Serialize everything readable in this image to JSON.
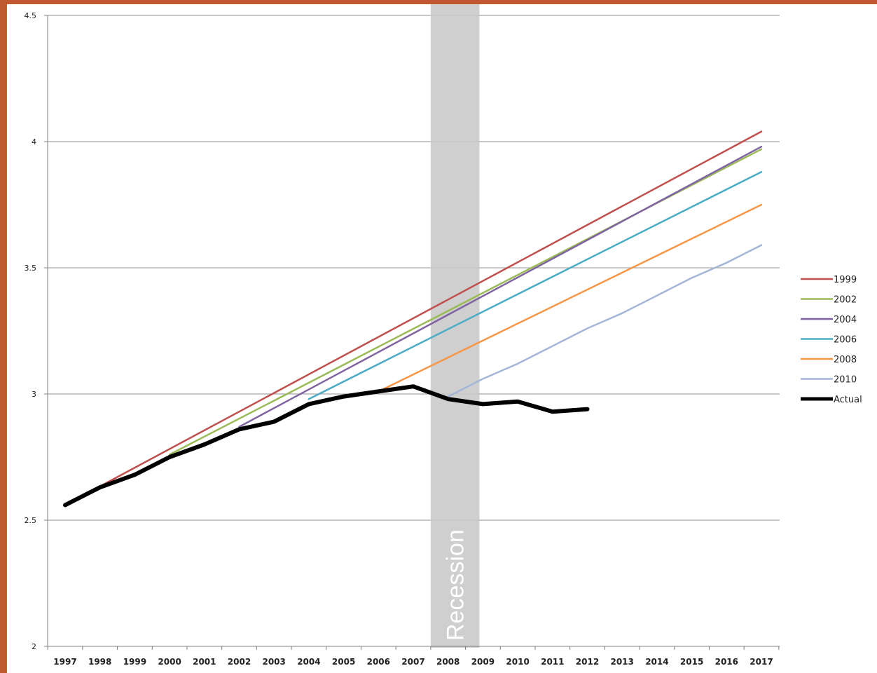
{
  "chart_data": {
    "type": "line",
    "title": "",
    "xlabel": "",
    "ylabel": "",
    "ylim": [
      2,
      4.5
    ],
    "y_ticks": [
      "2",
      "2.5",
      "3",
      "3.5",
      "4",
      "4.5"
    ],
    "x_categories": [
      "1997",
      "1998",
      "1999",
      "2000",
      "2001",
      "2002",
      "2003",
      "2004",
      "2005",
      "2006",
      "2007",
      "2008",
      "2009",
      "2010",
      "2011",
      "2012",
      "2013",
      "2014",
      "2015",
      "2016",
      "2017"
    ],
    "grid": "horizontal",
    "legend_position": "right",
    "recession": {
      "label": "Recession",
      "from": "2007.5",
      "to": "2008.9"
    },
    "series": [
      {
        "name": "1999",
        "color": "#c0504d",
        "width": 2.5,
        "x": [
          1997,
          2017
        ],
        "y": [
          2.56,
          4.04
        ]
      },
      {
        "name": "2002",
        "color": "#9bbb59",
        "width": 2.5,
        "x": [
          2000,
          2017
        ],
        "y": [
          2.76,
          3.97
        ]
      },
      {
        "name": "2004",
        "color": "#8064a2",
        "width": 2.5,
        "x": [
          2002,
          2017
        ],
        "y": [
          2.87,
          3.98
        ]
      },
      {
        "name": "2006",
        "color": "#4bacc6",
        "width": 2.5,
        "x": [
          2004,
          2017
        ],
        "y": [
          2.98,
          3.88
        ]
      },
      {
        "name": "2008",
        "color": "#f79646",
        "width": 2.5,
        "x": [
          2006,
          2017
        ],
        "y": [
          3.01,
          3.75
        ]
      },
      {
        "name": "2010",
        "color": "#a5b6d8",
        "width": 2.5,
        "x": [
          2008,
          2009,
          2010,
          2011,
          2012,
          2013,
          2014,
          2015,
          2016,
          2017
        ],
        "y": [
          2.99,
          3.06,
          3.12,
          3.19,
          3.26,
          3.32,
          3.39,
          3.46,
          3.52,
          3.59
        ]
      },
      {
        "name": "Actual",
        "color": "#000000",
        "width": 6,
        "x": [
          1997,
          1998,
          1999,
          2000,
          2001,
          2002,
          2003,
          2004,
          2005,
          2006,
          2007,
          2008,
          2009,
          2010,
          2011,
          2012
        ],
        "y": [
          2.56,
          2.63,
          2.68,
          2.75,
          2.8,
          2.86,
          2.89,
          2.96,
          2.99,
          3.01,
          3.03,
          2.98,
          2.96,
          2.97,
          2.93,
          2.94
        ]
      }
    ]
  }
}
